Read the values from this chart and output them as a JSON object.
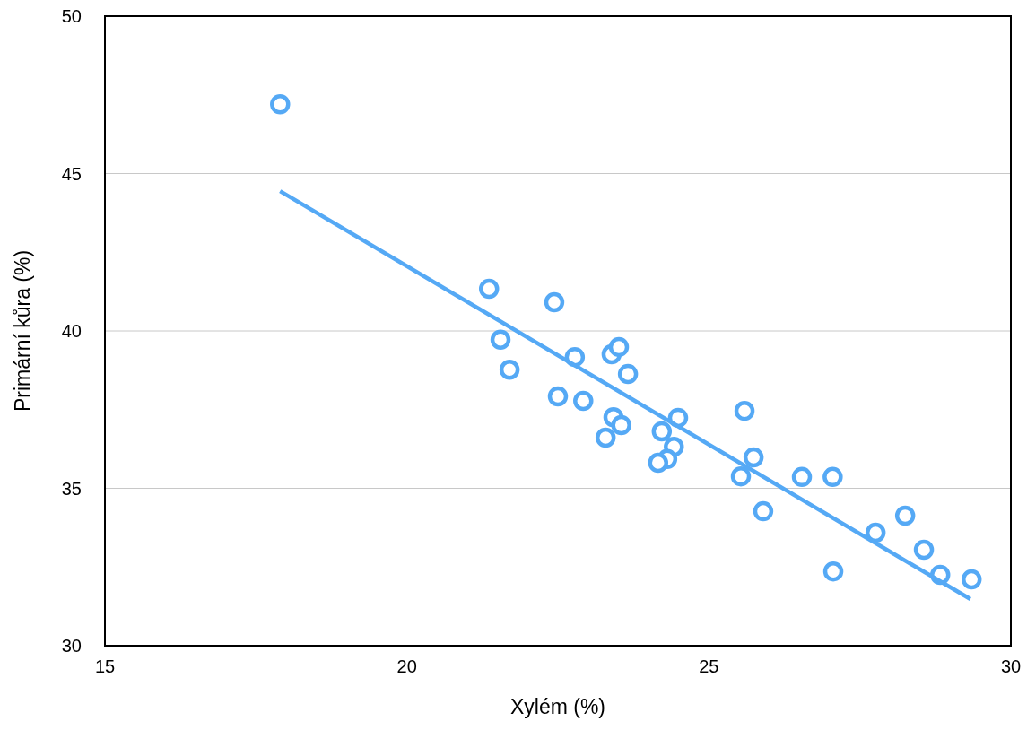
{
  "chart_data": {
    "type": "scatter",
    "xlabel": "Xylém (%)",
    "ylabel": "Primární kůra (%)",
    "xlim": [
      15,
      30
    ],
    "xticks": [
      15,
      20,
      25,
      30
    ],
    "ylim": [
      30,
      50
    ],
    "yticks": [
      30,
      35,
      40,
      45,
      50
    ],
    "grid": "y",
    "marker": "circle",
    "series": [
      {
        "color": "#55a9f5",
        "x": [
          17.9,
          21.36,
          22.44,
          21.55,
          21.7,
          22.78,
          23.39,
          23.51,
          23.66,
          22.5,
          22.92,
          23.42,
          23.55,
          23.29,
          24.49,
          24.22,
          24.42,
          24.31,
          24.16,
          25.59,
          25.74,
          25.53,
          25.9,
          26.54,
          27.05,
          27.06,
          27.76,
          28.25,
          28.56,
          28.83,
          29.35
        ],
        "values": [
          47.2,
          41.34,
          40.91,
          39.72,
          38.77,
          39.17,
          39.26,
          39.49,
          38.63,
          37.92,
          37.78,
          37.26,
          37.01,
          36.61,
          37.24,
          36.81,
          36.32,
          35.93,
          35.81,
          37.46,
          35.98,
          35.38,
          34.27,
          35.36,
          35.36,
          32.36,
          33.59,
          34.13,
          33.05,
          32.25,
          32.11
        ]
      },
      {
        "type": "line",
        "color": "#55a9f5",
        "x": [
          17.9,
          29.33
        ],
        "values": [
          44.44,
          31.48
        ],
        "marker": "none",
        "line_style": "solid"
      }
    ]
  }
}
